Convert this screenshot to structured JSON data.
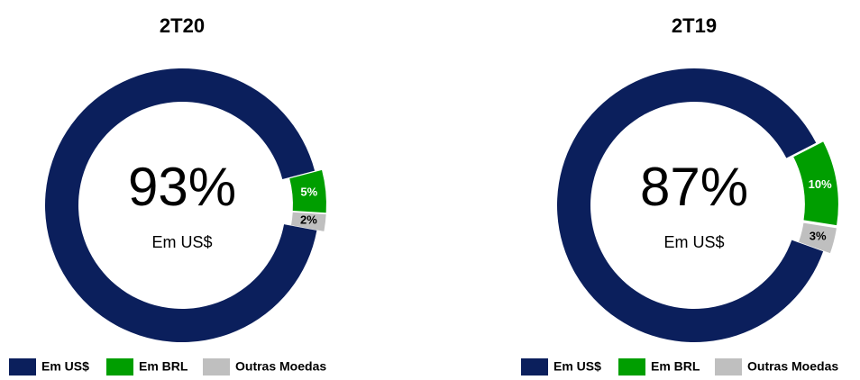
{
  "chart_data": [
    {
      "type": "donut",
      "title": "2T20",
      "categories": [
        "Em US$",
        "Em BRL",
        "Outras Moedas"
      ],
      "values": [
        93,
        5,
        2
      ],
      "value_labels": [
        "93%",
        "5%",
        "2%"
      ],
      "colors": [
        "#0b1f5c",
        "#009e00",
        "#bfbfbf"
      ]
    },
    {
      "type": "donut",
      "title": "2T19",
      "categories": [
        "Em US$",
        "Em BRL",
        "Outras Moedas"
      ],
      "values": [
        87,
        10,
        3
      ],
      "value_labels": [
        "87%",
        "10%",
        "3%"
      ],
      "colors": [
        "#0b1f5c",
        "#009e00",
        "#bfbfbf"
      ]
    }
  ]
}
